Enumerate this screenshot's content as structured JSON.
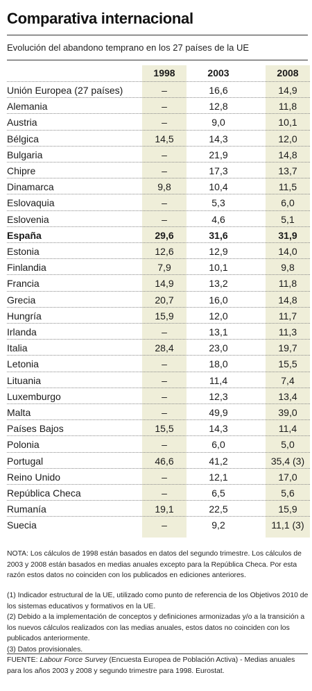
{
  "title": "Comparativa internacional",
  "subtitle": "Evolución del abandono temprano en los 27 países de la UE",
  "headers": [
    "1998",
    "2003",
    "2008"
  ],
  "rows": [
    {
      "name": "Unión Europea (27 países)",
      "v1998": "–",
      "v2003": "16,6",
      "v2008": "14,9",
      "bold": false
    },
    {
      "name": "Alemania",
      "v1998": "–",
      "v2003": "12,8",
      "v2008": "11,8",
      "bold": false
    },
    {
      "name": "Austria",
      "v1998": "–",
      "v2003": "9,0",
      "v2008": "10,1",
      "bold": false
    },
    {
      "name": "Bélgica",
      "v1998": "14,5",
      "v2003": "14,3",
      "v2008": "12,0",
      "bold": false
    },
    {
      "name": "Bulgaria",
      "v1998": "–",
      "v2003": "21,9",
      "v2008": "14,8",
      "bold": false
    },
    {
      "name": "Chipre",
      "v1998": "–",
      "v2003": "17,3",
      "v2008": "13,7",
      "bold": false
    },
    {
      "name": "Dinamarca",
      "v1998": "9,8",
      "v2003": "10,4",
      "v2008": "11,5",
      "bold": false
    },
    {
      "name": "Eslovaquia",
      "v1998": "–",
      "v2003": "5,3",
      "v2008": "6,0",
      "bold": false
    },
    {
      "name": "Eslovenia",
      "v1998": "–",
      "v2003": "4,6",
      "v2008": "5,1",
      "bold": false
    },
    {
      "name": "España",
      "v1998": "29,6",
      "v2003": "31,6",
      "v2008": "31,9",
      "bold": true
    },
    {
      "name": "Estonia",
      "v1998": "12,6",
      "v2003": "12,9",
      "v2008": "14,0",
      "bold": false
    },
    {
      "name": "Finlandia",
      "v1998": "7,9",
      "v2003": "10,1",
      "v2008": "9,8",
      "bold": false
    },
    {
      "name": "Francia",
      "v1998": "14,9",
      "v2003": "13,2",
      "v2008": "11,8",
      "bold": false
    },
    {
      "name": "Grecia",
      "v1998": "20,7",
      "v2003": "16,0",
      "v2008": "14,8",
      "bold": false
    },
    {
      "name": "Hungría",
      "v1998": "15,9",
      "v2003": "12,0",
      "v2008": "11,7",
      "bold": false
    },
    {
      "name": "Irlanda",
      "v1998": "–",
      "v2003": "13,1",
      "v2008": "11,3",
      "bold": false
    },
    {
      "name": "Italia",
      "v1998": "28,4",
      "v2003": "23,0",
      "v2008": "19,7",
      "bold": false
    },
    {
      "name": "Letonia",
      "v1998": "–",
      "v2003": "18,0",
      "v2008": "15,5",
      "bold": false
    },
    {
      "name": "Lituania",
      "v1998": "–",
      "v2003": "11,4",
      "v2008": "7,4",
      "bold": false
    },
    {
      "name": "Luxemburgo",
      "v1998": "–",
      "v2003": "12,3",
      "v2008": "13,4",
      "bold": false
    },
    {
      "name": "Malta",
      "v1998": "–",
      "v2003": "49,9",
      "v2008": "39,0",
      "bold": false
    },
    {
      "name": "Países Bajos",
      "v1998": "15,5",
      "v2003": "14,3",
      "v2008": "11,4",
      "bold": false
    },
    {
      "name": "Polonia",
      "v1998": "–",
      "v2003": "6,0",
      "v2008": "5,0",
      "bold": false
    },
    {
      "name": "Portugal",
      "v1998": "46,6",
      "v2003": "41,2",
      "v2008": "35,4 (3)",
      "bold": false
    },
    {
      "name": "Reino Unido",
      "v1998": "–",
      "v2003": "12,1",
      "v2008": "17,0",
      "bold": false
    },
    {
      "name": "República Checa",
      "v1998": "–",
      "v2003": "6,5",
      "v2008": "5,6",
      "bold": false
    },
    {
      "name": "Rumanía",
      "v1998": "19,1",
      "v2003": "22,5",
      "v2008": "15,9",
      "bold": false
    },
    {
      "name": "Suecia",
      "v1998": "–",
      "v2003": "9,2",
      "v2008": "11,1 (3)",
      "bold": false
    }
  ],
  "notes": {
    "nota": "NOTA: Los cálculos de 1998 están basados en datos del segundo trimestre. Los cálculos de 2003 y 2008 están basados en medias anuales excepto para la República Checa. Por esta razón estos datos no coinciden con los publicados en ediciones anteriores.",
    "n1": "(1) Indicador estructural de la UE, utilizado como punto de referencia de los Objetivos 2010 de los sistemas educativos y formativos en la UE.",
    "n2": "(2) Debido a la implementación de conceptos y definiciones armonizadas y/o a la transición a los nuevos cálculos realizados con las medias anuales, estos datos no coinciden con los publicados anteriormente.",
    "n3": "(3) Datos provisionales.",
    "fuente_prefix": "FUENTE: ",
    "fuente_title": "Labour Force Survey",
    "fuente_rest": " (Encuesta Europea de Población Activa) - Medias anuales para los años 2003 y 2008 y segundo trimestre para 1998. Eurostat."
  },
  "colors": {
    "column_highlight": "#efeed9",
    "text": "#1a1a1a"
  }
}
